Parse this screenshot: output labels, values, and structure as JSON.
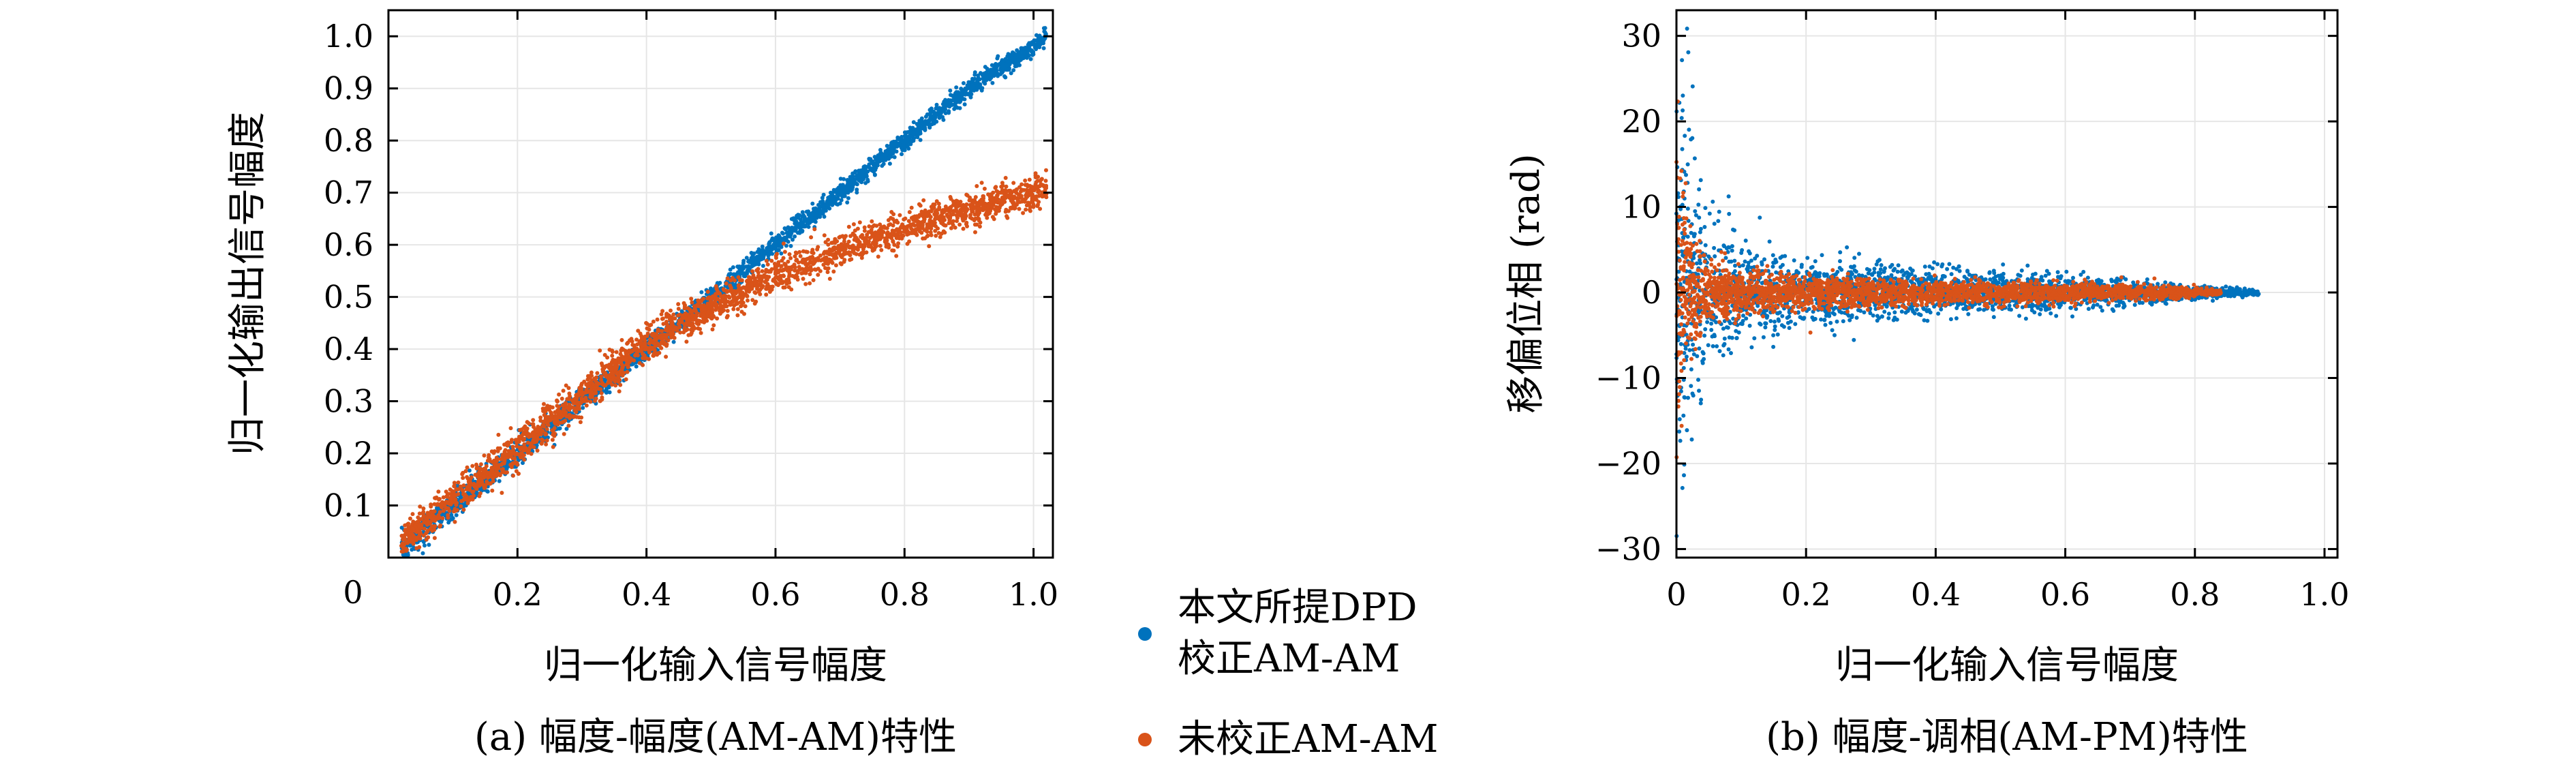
{
  "colors": {
    "corrected": "#0072BD",
    "uncorrected": "#D95319",
    "grid": "#e6e6e6",
    "axis": "#000000"
  },
  "legend": {
    "items": [
      {
        "label_line1": "本文所提DPD",
        "label_line2": "校正AM-AM",
        "color": "#0072BD"
      },
      {
        "label_line1": "未校正AM-AM",
        "label_line2": "",
        "color": "#D95319"
      }
    ]
  },
  "chart_data": [
    {
      "type": "scatter",
      "caption": "(a) 幅度-幅度(AM-AM)特性",
      "xlabel": "归一化输入信号幅度",
      "ylabel": "归一化输出信号幅度",
      "xlim": [
        0,
        1.03
      ],
      "ylim": [
        0,
        1.05
      ],
      "xticks": [
        0.2,
        0.4,
        0.6,
        0.8,
        1.0
      ],
      "xtick_labels": [
        "0.2",
        "0.4",
        "0.6",
        "0.8",
        "1.0"
      ],
      "yticks": [
        0.1,
        0.2,
        0.3,
        0.4,
        0.5,
        0.6,
        0.7,
        0.8,
        0.9,
        1.0
      ],
      "ytick_labels": [
        "0.1",
        "0.2",
        "0.3",
        "0.4",
        "0.5",
        "0.6",
        "0.7",
        "0.8",
        "0.9",
        "1.0"
      ],
      "origin_label": "0",
      "grid": true,
      "series": [
        {
          "name": "本文所提DPD校正AM-AM",
          "color": "#0072BD",
          "x": [
            0.02,
            0.1,
            0.2,
            0.3,
            0.4,
            0.5,
            0.6,
            0.7,
            0.8,
            0.9,
            1.0,
            1.02
          ],
          "y": [
            0.02,
            0.1,
            0.2,
            0.3,
            0.4,
            0.5,
            0.6,
            0.7,
            0.8,
            0.9,
            0.98,
            1.0
          ],
          "spread": [
            0.03,
            0.03,
            0.03,
            0.025,
            0.022,
            0.02,
            0.02,
            0.02,
            0.02,
            0.02,
            0.02,
            0.02
          ]
        },
        {
          "name": "未校正AM-AM",
          "color": "#D95319",
          "x": [
            0.02,
            0.1,
            0.2,
            0.3,
            0.4,
            0.5,
            0.6,
            0.7,
            0.8,
            0.9,
            1.0,
            1.02
          ],
          "y": [
            0.03,
            0.11,
            0.21,
            0.31,
            0.41,
            0.48,
            0.54,
            0.59,
            0.63,
            0.67,
            0.7,
            0.71
          ],
          "spread": [
            0.035,
            0.04,
            0.045,
            0.04,
            0.04,
            0.035,
            0.035,
            0.035,
            0.035,
            0.035,
            0.035,
            0.035
          ]
        }
      ]
    },
    {
      "type": "scatter",
      "caption": "(b) 幅度-调相(AM-PM)特性",
      "xlabel": "归一化输入信号幅度",
      "ylabel": "移偏位相 (rad)",
      "xlim": [
        0,
        1.02
      ],
      "ylim": [
        -31,
        33
      ],
      "xticks": [
        0,
        0.2,
        0.4,
        0.6,
        0.8,
        1.0
      ],
      "xtick_labels": [
        "0",
        "0.2",
        "0.4",
        "0.6",
        "0.8",
        "1.0"
      ],
      "yticks": [
        -30,
        -20,
        -10,
        0,
        10,
        20,
        30
      ],
      "ytick_labels": [
        "−30",
        "−20",
        "−10",
        "0",
        "10",
        "20",
        "30"
      ],
      "grid": true,
      "series": [
        {
          "name": "本文所提DPD校正AM-PM",
          "color": "#0072BD",
          "x": [
            0.0,
            0.02,
            0.05,
            0.1,
            0.2,
            0.3,
            0.4,
            0.5,
            0.6,
            0.7,
            0.8,
            0.9
          ],
          "y": [
            0,
            0,
            0,
            0,
            0,
            0,
            0,
            0,
            0,
            0,
            0,
            0
          ],
          "spread": [
            28,
            22,
            10,
            6,
            4,
            3.5,
            3,
            2.6,
            2.2,
            1.6,
            0.9,
            0.3
          ]
        },
        {
          "name": "未校正AM-PM",
          "color": "#D95319",
          "x": [
            0.0,
            0.02,
            0.05,
            0.1,
            0.2,
            0.3,
            0.4,
            0.5,
            0.6,
            0.7,
            0.8,
            0.84
          ],
          "y": [
            0,
            0,
            0,
            0,
            0,
            0,
            0,
            0,
            0,
            0,
            0,
            0
          ],
          "spread": [
            22,
            7,
            4,
            3,
            2.2,
            1.8,
            1.6,
            1.4,
            1.2,
            1.0,
            0.6,
            0.3
          ]
        }
      ]
    }
  ]
}
